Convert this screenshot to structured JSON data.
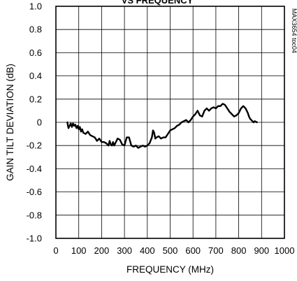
{
  "chart_data": {
    "type": "line",
    "title_fragment": "VS FREQUENCY",
    "xlabel": "FREQUENCY (MHz)",
    "ylabel": "GAIN TILT DEVIATION (dB)",
    "figure_id": "MAX3654 toc04",
    "xlim": [
      0,
      1000
    ],
    "ylim": [
      -1.0,
      1.0
    ],
    "x_ticks": [
      0,
      100,
      200,
      300,
      400,
      500,
      600,
      700,
      800,
      900,
      1000
    ],
    "y_ticks": [
      1.0,
      0.8,
      0.6,
      0.4,
      0.2,
      0,
      -0.2,
      -0.4,
      -0.6,
      -0.8,
      -1.0
    ],
    "x_tick_labels": [
      "0",
      "100",
      "200",
      "300",
      "400",
      "500",
      "600",
      "700",
      "800",
      "900",
      "1000"
    ],
    "y_tick_labels": [
      "1.0",
      "0.8",
      "0.6",
      "0.4",
      "0.2",
      "0",
      "-0.2",
      "-0.4",
      "-0.6",
      "-0.8",
      "-1.0"
    ],
    "grid": true,
    "series": [
      {
        "color": "#000000",
        "x": [
          50,
          55,
          60,
          65,
          70,
          75,
          80,
          85,
          90,
          95,
          100,
          105,
          110,
          115,
          120,
          130,
          140,
          150,
          160,
          170,
          180,
          190,
          200,
          210,
          220,
          230,
          235,
          240,
          245,
          250,
          255,
          260,
          270,
          280,
          290,
          300,
          310,
          320,
          330,
          340,
          350,
          360,
          370,
          380,
          390,
          400,
          410,
          420,
          425,
          430,
          435,
          440,
          450,
          460,
          470,
          480,
          490,
          500,
          510,
          520,
          530,
          540,
          550,
          560,
          570,
          580,
          590,
          600,
          610,
          620,
          630,
          640,
          650,
          660,
          670,
          680,
          690,
          700,
          710,
          720,
          730,
          740,
          750,
          760,
          770,
          780,
          790,
          800,
          810,
          820,
          830,
          840,
          845,
          850,
          855,
          860,
          865,
          870,
          880
        ],
        "y": [
          0.0,
          -0.05,
          -0.03,
          -0.01,
          -0.04,
          -0.01,
          -0.03,
          -0.02,
          -0.05,
          -0.03,
          -0.06,
          -0.04,
          -0.08,
          -0.06,
          -0.09,
          -0.1,
          -0.08,
          -0.11,
          -0.12,
          -0.13,
          -0.16,
          -0.14,
          -0.17,
          -0.17,
          -0.18,
          -0.2,
          -0.16,
          -0.19,
          -0.2,
          -0.17,
          -0.2,
          -0.18,
          -0.14,
          -0.15,
          -0.19,
          -0.2,
          -0.13,
          -0.13,
          -0.2,
          -0.21,
          -0.2,
          -0.22,
          -0.21,
          -0.2,
          -0.21,
          -0.2,
          -0.18,
          -0.13,
          -0.07,
          -0.09,
          -0.14,
          -0.13,
          -0.12,
          -0.14,
          -0.13,
          -0.13,
          -0.1,
          -0.07,
          -0.06,
          -0.05,
          -0.03,
          -0.02,
          0.0,
          0.01,
          0.02,
          0.0,
          0.02,
          0.05,
          0.07,
          0.1,
          0.06,
          0.05,
          0.1,
          0.12,
          0.1,
          0.12,
          0.13,
          0.12,
          0.14,
          0.14,
          0.16,
          0.15,
          0.12,
          0.09,
          0.07,
          0.05,
          0.06,
          0.08,
          0.12,
          0.14,
          0.12,
          0.08,
          0.05,
          0.03,
          0.02,
          0.01,
          0.0,
          0.01,
          0.0
        ]
      }
    ]
  }
}
